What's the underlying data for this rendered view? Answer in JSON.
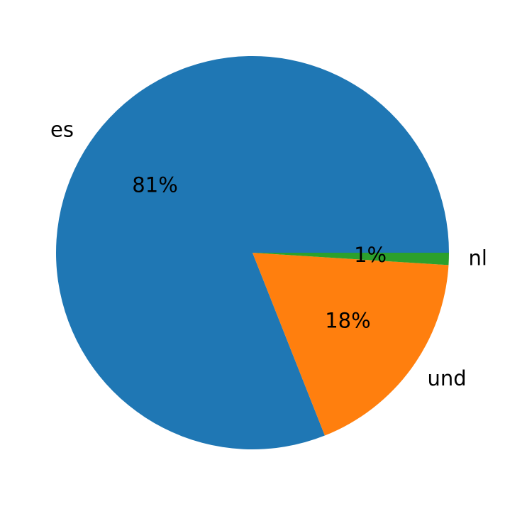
{
  "chart_data": {
    "type": "pie",
    "categories": [
      "es",
      "und",
      "nl"
    ],
    "values": [
      81,
      18,
      1
    ],
    "value_labels": [
      "81%",
      "18%",
      "1%"
    ],
    "colors": [
      "#1f77b4",
      "#ff7f0e",
      "#2ca02c"
    ]
  }
}
